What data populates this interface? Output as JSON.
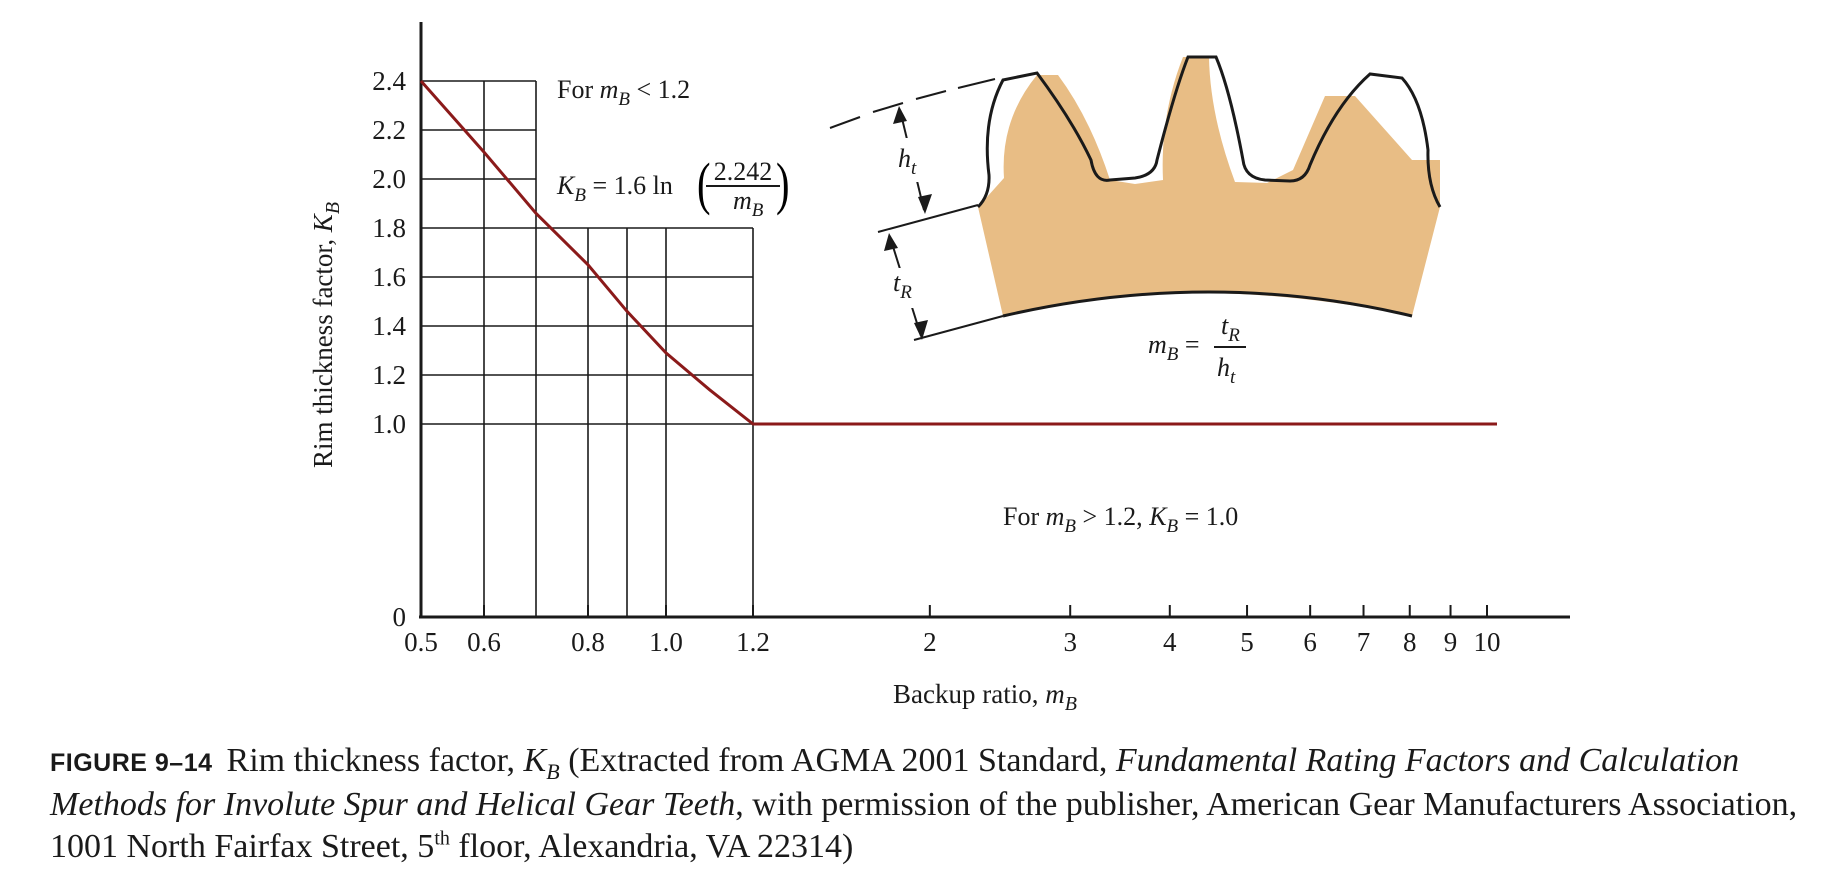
{
  "chart_data": {
    "type": "line",
    "xscale": "log",
    "xlabel": "Backup ratio, m_B",
    "ylabel": "Rim thickness factor, K_B",
    "xlim": [
      0.5,
      12
    ],
    "ylim": [
      0,
      2.6
    ],
    "x_ticks": [
      {
        "label": "0.5",
        "value": 0.5
      },
      {
        "label": "0.6",
        "value": 0.6
      },
      {
        "label": "0.8",
        "value": 0.8
      },
      {
        "label": "1.0",
        "value": 1.0
      },
      {
        "label": "1.2",
        "value": 1.2
      },
      {
        "label": "2",
        "value": 2
      },
      {
        "label": "3",
        "value": 3
      },
      {
        "label": "4",
        "value": 4
      },
      {
        "label": "5",
        "value": 5
      },
      {
        "label": "6",
        "value": 6
      },
      {
        "label": "7",
        "value": 7
      },
      {
        "label": "8",
        "value": 8
      },
      {
        "label": "9",
        "value": 9
      },
      {
        "label": "10",
        "value": 10
      }
    ],
    "y_ticks": [
      {
        "label": "0",
        "value": 0
      },
      {
        "label": "1.0",
        "value": 1.0
      },
      {
        "label": "1.2",
        "value": 1.2
      },
      {
        "label": "1.4",
        "value": 1.4
      },
      {
        "label": "1.6",
        "value": 1.6
      },
      {
        "label": "1.8",
        "value": 1.8
      },
      {
        "label": "2.0",
        "value": 2.0
      },
      {
        "label": "2.2",
        "value": 2.2
      },
      {
        "label": "2.4",
        "value": 2.4
      }
    ],
    "grid": "partial (region m_B ≤ 1.2, K_B ≥ 1.0)",
    "series": [
      {
        "x": [
          0.5,
          0.6,
          0.7,
          0.8,
          0.9,
          1.0,
          1.1,
          1.2,
          2,
          4,
          10
        ],
        "y": [
          2.4,
          2.11,
          1.86,
          1.65,
          1.46,
          1.29,
          1.14,
          1.0,
          1.0,
          1.0,
          1.0
        ],
        "color": "#8b1a1a"
      }
    ],
    "annotations": {
      "for_low": {
        "pre": "For ",
        "var": "m",
        "sub": "B",
        "post": " < 1.2"
      },
      "formula": {
        "lhs_var": "K",
        "lhs_sub": "B",
        "mid": " = 1.6 ln",
        "num": "2.242",
        "den_var": "m",
        "den_sub": "B"
      },
      "for_high": {
        "pre": "For ",
        "var1": "m",
        "sub1": "B",
        "mid": " > 1.2, ",
        "var2": "K",
        "sub2": "B",
        "post": " = 1.0"
      }
    },
    "gear_diagram": {
      "fill": "#e8bd85",
      "ht": {
        "var": "h",
        "sub": "t"
      },
      "tr": {
        "var": "t",
        "sub": "R"
      },
      "mb_formula": {
        "lhs_var": "m",
        "lhs_sub": "B",
        "eq": " =",
        "num_var": "t",
        "num_sub": "R",
        "den_var": "h",
        "den_sub": "t"
      }
    }
  },
  "caption": {
    "fignum": "FIGURE 9–14",
    "t1": "Rim thickness factor, ",
    "kvar": "K",
    "ksub": "B",
    "t2": " (Extracted from AGMA 2001 Standard, ",
    "italic": "Fundamental Rating Factors and Calculation Methods for Involute Spur and Helical Gear Teeth",
    "t3": ", with permission of the publisher, American Gear Manufacturers Association, 1001 North Fairfax Street, 5",
    "sup": "th",
    "t4": " floor, Alexandria, VA 22314)"
  }
}
